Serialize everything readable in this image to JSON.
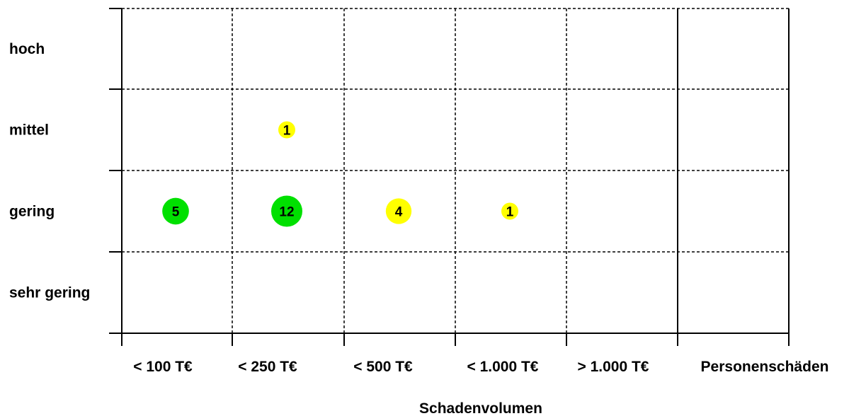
{
  "chart_data": {
    "type": "scatter",
    "title": "",
    "xlabel": "Schadenvolumen",
    "ylabel": "",
    "x_categories": [
      "< 100 T€",
      "< 250 T€",
      "< 500 T€",
      "< 1.000 T€",
      "> 1.000 T€",
      "Personenschäden"
    ],
    "y_categories": [
      "sehr gering",
      "gering",
      "mittel",
      "hoch"
    ],
    "grid": true,
    "colors": {
      "green": "#00e000",
      "yellow": "#ffff00",
      "grid": "#000000"
    },
    "points": [
      {
        "x": "< 100 T€",
        "y": "gering",
        "value": 5,
        "label": "5",
        "color": "green"
      },
      {
        "x": "< 250 T€",
        "y": "gering",
        "value": 12,
        "label": "12",
        "color": "green"
      },
      {
        "x": "< 500 T€",
        "y": "gering",
        "value": 4,
        "label": "4",
        "color": "yellow"
      },
      {
        "x": "< 1.000 T€",
        "y": "gering",
        "value": 1,
        "label": "1",
        "color": "yellow"
      },
      {
        "x": "< 250 T€",
        "y": "mittel",
        "value": 1,
        "label": "1",
        "color": "yellow"
      }
    ]
  }
}
